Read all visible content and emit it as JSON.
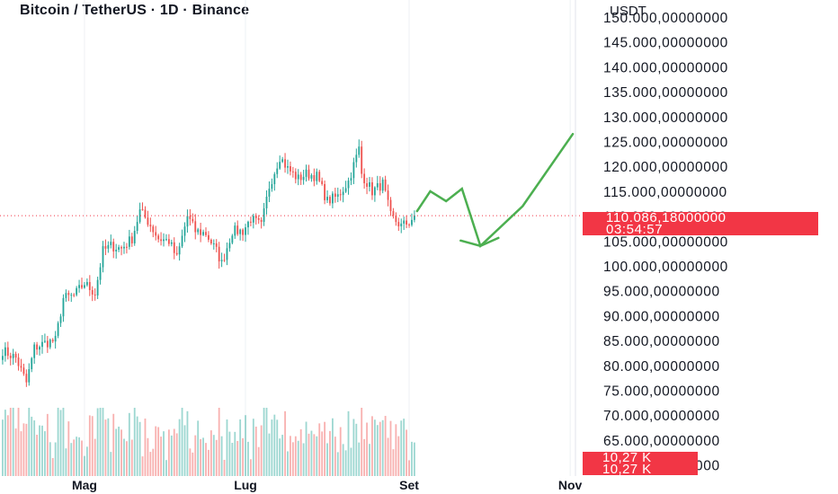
{
  "header": {
    "title": "Bitcoin / TetherUS · 1D · Binance",
    "currency": "USDT"
  },
  "price_axis": {
    "ticks": [
      {
        "value": 150000,
        "label": "150.000,00000000"
      },
      {
        "value": 145000,
        "label": "145.000,00000000"
      },
      {
        "value": 140000,
        "label": "140.000,00000000"
      },
      {
        "value": 135000,
        "label": "135.000,00000000"
      },
      {
        "value": 130000,
        "label": "130.000,00000000"
      },
      {
        "value": 125000,
        "label": "125.000,00000000"
      },
      {
        "value": 120000,
        "label": "120.000,00000000"
      },
      {
        "value": 115000,
        "label": "115.000,00000000"
      },
      {
        "value": 110000,
        "label": "110.000,00000000"
      },
      {
        "value": 105000,
        "label": "105.000,00000000"
      },
      {
        "value": 100000,
        "label": "100.000,00000000"
      },
      {
        "value": 95000,
        "label": "95.000,00000000"
      },
      {
        "value": 90000,
        "label": "90.000,00000000"
      },
      {
        "value": 85000,
        "label": "85.000,00000000"
      },
      {
        "value": 80000,
        "label": "80.000,00000000"
      },
      {
        "value": 75000,
        "label": "75.000,00000000"
      },
      {
        "value": 70000,
        "label": "70.000,00000000"
      },
      {
        "value": 65000,
        "label": "65.000,00000000"
      },
      {
        "value": 60000,
        "label": "60.000,00000000"
      }
    ]
  },
  "current_price": {
    "value": 110086.18,
    "label": "110.086,18000000",
    "countdown": "03:54:57"
  },
  "volume_badge": {
    "line1": "10,27 K",
    "line2": "10,27 K"
  },
  "time_axis": {
    "labels": [
      {
        "date": "2025-05-01",
        "label": "Mag"
      },
      {
        "date": "2025-07-01",
        "label": "Lug"
      },
      {
        "date": "2025-09-01",
        "label": "Set"
      },
      {
        "date": "2025-11-01",
        "label": "Nov"
      }
    ]
  },
  "colors": {
    "up": "#26a69a",
    "down": "#ef5350",
    "price_label_bg": "#f23645",
    "projection": "#4caf50",
    "grid": "#eef0f4"
  },
  "chart_data": {
    "type": "candlestick",
    "ylim": [
      58000,
      152000
    ],
    "xlim": [
      "2025-03-30",
      "2025-11-03"
    ],
    "grid": true,
    "closes": [
      {
        "date": "2025-03-31",
        "close": 83000
      },
      {
        "date": "2025-04-05",
        "close": 81500
      },
      {
        "date": "2025-04-09",
        "close": 76500
      },
      {
        "date": "2025-04-12",
        "close": 83500
      },
      {
        "date": "2025-04-16",
        "close": 84500
      },
      {
        "date": "2025-04-20",
        "close": 85000
      },
      {
        "date": "2025-04-23",
        "close": 93500
      },
      {
        "date": "2025-04-27",
        "close": 94000
      },
      {
        "date": "2025-05-01",
        "close": 96500
      },
      {
        "date": "2025-05-05",
        "close": 94500
      },
      {
        "date": "2025-05-08",
        "close": 103000
      },
      {
        "date": "2025-05-11",
        "close": 104000
      },
      {
        "date": "2025-05-15",
        "close": 103500
      },
      {
        "date": "2025-05-19",
        "close": 105500
      },
      {
        "date": "2025-05-22",
        "close": 111000
      },
      {
        "date": "2025-05-25",
        "close": 109000
      },
      {
        "date": "2025-05-29",
        "close": 105500
      },
      {
        "date": "2025-06-02",
        "close": 105000
      },
      {
        "date": "2025-06-05",
        "close": 101500
      },
      {
        "date": "2025-06-09",
        "close": 110000
      },
      {
        "date": "2025-06-12",
        "close": 107000
      },
      {
        "date": "2025-06-16",
        "close": 106500
      },
      {
        "date": "2025-06-20",
        "close": 103000
      },
      {
        "date": "2025-06-22",
        "close": 100500
      },
      {
        "date": "2025-06-26",
        "close": 107000
      },
      {
        "date": "2025-06-30",
        "close": 107000
      },
      {
        "date": "2025-07-03",
        "close": 109500
      },
      {
        "date": "2025-07-07",
        "close": 108000
      },
      {
        "date": "2025-07-10",
        "close": 116000
      },
      {
        "date": "2025-07-14",
        "close": 122000
      },
      {
        "date": "2025-07-17",
        "close": 119500
      },
      {
        "date": "2025-07-21",
        "close": 117500
      },
      {
        "date": "2025-07-24",
        "close": 118500
      },
      {
        "date": "2025-07-28",
        "close": 118000
      },
      {
        "date": "2025-08-01",
        "close": 113000
      },
      {
        "date": "2025-08-05",
        "close": 114000
      },
      {
        "date": "2025-08-09",
        "close": 117000
      },
      {
        "date": "2025-08-13",
        "close": 123500
      },
      {
        "date": "2025-08-14",
        "close": 118500
      },
      {
        "date": "2025-08-18",
        "close": 115000
      },
      {
        "date": "2025-08-22",
        "close": 116500
      },
      {
        "date": "2025-08-25",
        "close": 110000
      },
      {
        "date": "2025-08-29",
        "close": 108000
      },
      {
        "date": "2025-09-01",
        "close": 108800
      },
      {
        "date": "2025-09-03",
        "close": 110086.18
      }
    ],
    "projection": [
      {
        "date": "2025-09-04",
        "price": 111000
      },
      {
        "date": "2025-09-09",
        "price": 115000
      },
      {
        "date": "2025-09-15",
        "price": 113000
      },
      {
        "date": "2025-09-21",
        "price": 115500
      },
      {
        "date": "2025-09-28",
        "price": 104000
      },
      {
        "date": "2025-10-14",
        "price": 112000
      },
      {
        "date": "2025-11-02",
        "price": 126500
      }
    ]
  }
}
